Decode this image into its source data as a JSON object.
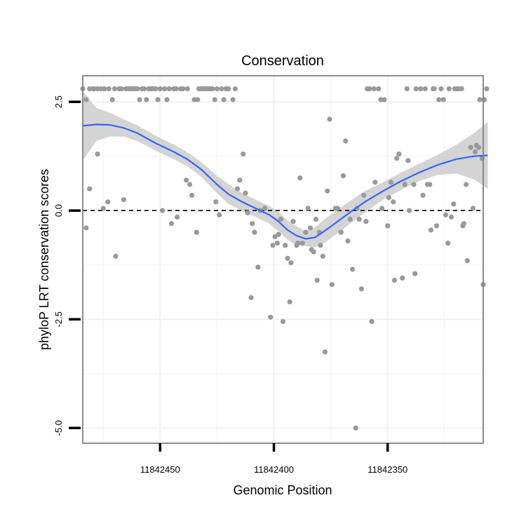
{
  "chart_data": {
    "type": "scatter",
    "title": "Conservation",
    "xlabel": "Genomic Position",
    "ylabel": "phyloP LRT conservation scores",
    "x_reversed": true,
    "xlim": [
      11842484,
      11842308
    ],
    "ylim": [
      -5.35,
      3.1
    ],
    "x_ticks": [
      11842450,
      11842400,
      11842350
    ],
    "x_tick_labels": [
      "11842450",
      "11842400",
      "11842350"
    ],
    "y_ticks": [
      2.5,
      0.0,
      -2.5,
      -5.0
    ],
    "y_tick_labels": [
      "2.5",
      "0.0",
      "-2.5",
      "-5.0"
    ],
    "minor_gridlines_x": [
      11842475,
      11842425,
      11842375,
      11842325
    ],
    "minor_gridlines_y": [
      1.25,
      -1.25,
      -3.75
    ],
    "reference_line": {
      "y": 0,
      "style": "dashed"
    },
    "colors": {
      "points": "#999999",
      "smooth": "#3366ff",
      "band": "#cccccc",
      "frame": "#7f7f7f",
      "grid": "#f2f2f2"
    },
    "points": [
      [
        11842484.0,
        2.8
      ],
      [
        11842482.5,
        -0.4
      ],
      [
        11842482.5,
        2.55
      ],
      [
        11842481.0,
        2.8
      ],
      [
        11842481.0,
        0.5
      ],
      [
        11842479.5,
        2.8
      ],
      [
        11842479.0,
        2.8
      ],
      [
        11842477.5,
        2.8
      ],
      [
        11842477.5,
        1.3
      ],
      [
        11842476.0,
        2.8
      ],
      [
        11842475.0,
        0.05
      ],
      [
        11842474.5,
        2.8
      ],
      [
        11842473.0,
        0.2
      ],
      [
        11842472.5,
        2.8
      ],
      [
        11842471.0,
        2.55
      ],
      [
        11842470.0,
        2.8
      ],
      [
        11842469.5,
        -1.05
      ],
      [
        11842468.0,
        2.8
      ],
      [
        11842467.0,
        2.8
      ],
      [
        11842466.0,
        0.25
      ],
      [
        11842465.0,
        2.8
      ],
      [
        11842464.0,
        2.8
      ],
      [
        11842463.0,
        2.8
      ],
      [
        11842462.0,
        2.8
      ],
      [
        11842461.0,
        2.8
      ],
      [
        11842460.0,
        2.8
      ],
      [
        11842459.0,
        2.55
      ],
      [
        11842458.0,
        2.8
      ],
      [
        11842457.0,
        2.8
      ],
      [
        11842456.0,
        2.55
      ],
      [
        11842455.0,
        2.8
      ],
      [
        11842454.0,
        2.8
      ],
      [
        11842453.0,
        2.8
      ],
      [
        11842452.0,
        2.8
      ],
      [
        11842451.0,
        2.55
      ],
      [
        11842450.0,
        2.8
      ],
      [
        11842449.0,
        0.0
      ],
      [
        11842448.0,
        2.8
      ],
      [
        11842447.0,
        2.55
      ],
      [
        11842446.0,
        2.8
      ],
      [
        11842445.0,
        -0.3
      ],
      [
        11842444.0,
        2.8
      ],
      [
        11842443.0,
        2.8
      ],
      [
        11842442.5,
        -0.15
      ],
      [
        11842441.0,
        2.8
      ],
      [
        11842440.0,
        2.8
      ],
      [
        11842438.5,
        0.7
      ],
      [
        11842438.0,
        2.8
      ],
      [
        11842437.0,
        0.6
      ],
      [
        11842436.0,
        0.35
      ],
      [
        11842435.0,
        2.55
      ],
      [
        11842434.0,
        -0.5
      ],
      [
        11842433.5,
        2.55
      ],
      [
        11842433.0,
        2.8
      ],
      [
        11842432.0,
        2.8
      ],
      [
        11842431.0,
        2.8
      ],
      [
        11842430.0,
        2.8
      ],
      [
        11842429.0,
        2.8
      ],
      [
        11842428.0,
        2.8
      ],
      [
        11842427.0,
        2.8
      ],
      [
        11842426.0,
        2.55
      ],
      [
        11842425.5,
        0.2
      ],
      [
        11842425.0,
        2.8
      ],
      [
        11842424.0,
        -0.1
      ],
      [
        11842423.0,
        2.8
      ],
      [
        11842422.0,
        2.55
      ],
      [
        11842421.0,
        2.8
      ],
      [
        11842420.0,
        2.8
      ],
      [
        11842418.0,
        2.55
      ],
      [
        11842417.0,
        2.8
      ],
      [
        11842416.0,
        0.5
      ],
      [
        11842415.0,
        0.7
      ],
      [
        11842413.5,
        1.3
      ],
      [
        11842412.5,
        0.4
      ],
      [
        11842411.5,
        -0.05
      ],
      [
        11842410.0,
        -2.0
      ],
      [
        11842409.5,
        -0.3
      ],
      [
        11842408.5,
        -0.5
      ],
      [
        11842407.0,
        -1.3
      ],
      [
        11842406.0,
        0.0
      ],
      [
        11842404.0,
        0.05
      ],
      [
        11842401.5,
        -2.45
      ],
      [
        11842400.5,
        -0.8
      ],
      [
        11842399.5,
        -0.6
      ],
      [
        11842398.5,
        -0.75
      ],
      [
        11842398.0,
        -0.55
      ],
      [
        11842397.0,
        -0.2
      ],
      [
        11842396.0,
        -2.55
      ],
      [
        11842395.0,
        -0.8
      ],
      [
        11842394.0,
        -1.1
      ],
      [
        11842393.0,
        -2.1
      ],
      [
        11842392.5,
        -1.2
      ],
      [
        11842391.5,
        -0.25
      ],
      [
        11842390.0,
        -0.8
      ],
      [
        11842389.5,
        -0.75
      ],
      [
        11842388.5,
        0.75
      ],
      [
        11842387.5,
        -0.75
      ],
      [
        11842386.0,
        -0.5
      ],
      [
        11842385.0,
        0.05
      ],
      [
        11842384.0,
        -0.4
      ],
      [
        11842383.5,
        -0.9
      ],
      [
        11842382.5,
        -0.95
      ],
      [
        11842381.5,
        -0.2
      ],
      [
        11842381.0,
        -1.6
      ],
      [
        11842380.0,
        -0.5
      ],
      [
        11842379.5,
        -0.8
      ],
      [
        11842378.5,
        -1.05
      ],
      [
        11842377.5,
        -3.25
      ],
      [
        11842376.5,
        0.45
      ],
      [
        11842375.5,
        2.1
      ],
      [
        11842374.5,
        -1.7
      ],
      [
        11842373.0,
        0.05
      ],
      [
        11842372.0,
        0.05
      ],
      [
        11842370.5,
        -0.5
      ],
      [
        11842369.5,
        0.8
      ],
      [
        11842368.5,
        1.6
      ],
      [
        11842367.5,
        -0.7
      ],
      [
        11842366.5,
        -0.2
      ],
      [
        11842365.5,
        -1.35
      ],
      [
        11842364.0,
        -5.0
      ],
      [
        11842363.5,
        0.05
      ],
      [
        11842362.5,
        -0.2
      ],
      [
        11842361.5,
        -1.8
      ],
      [
        11842360.5,
        0.35
      ],
      [
        11842359.5,
        -0.25
      ],
      [
        11842359.0,
        2.8
      ],
      [
        11842358.0,
        2.8
      ],
      [
        11842357.0,
        -2.55
      ],
      [
        11842356.0,
        2.8
      ],
      [
        11842355.5,
        0.65
      ],
      [
        11842354.0,
        2.8
      ],
      [
        11842353.0,
        2.55
      ],
      [
        11842352.5,
        0.05
      ],
      [
        11842351.5,
        2.55
      ],
      [
        11842350.0,
        -0.35
      ],
      [
        11842349.5,
        0.3
      ],
      [
        11842348.5,
        0.65
      ],
      [
        11842347.5,
        0.2
      ],
      [
        11842347.0,
        -1.6
      ],
      [
        11842346.0,
        1.2
      ],
      [
        11842345.0,
        1.3
      ],
      [
        11842343.5,
        -1.55
      ],
      [
        11842342.5,
        0.6
      ],
      [
        11842341.5,
        2.8
      ],
      [
        11842341.0,
        1.15
      ],
      [
        11842340.5,
        0.0
      ],
      [
        11842338.5,
        0.6
      ],
      [
        11842338.0,
        -1.45
      ],
      [
        11842337.5,
        2.8
      ],
      [
        11842335.5,
        2.8
      ],
      [
        11842334.5,
        0.35
      ],
      [
        11842333.5,
        2.8
      ],
      [
        11842332.5,
        0.6
      ],
      [
        11842331.5,
        0.6
      ],
      [
        11842331.0,
        -0.45
      ],
      [
        11842330.0,
        2.8
      ],
      [
        11842329.5,
        2.8
      ],
      [
        11842328.5,
        -0.35
      ],
      [
        11842327.5,
        2.55
      ],
      [
        11842326.5,
        2.8
      ],
      [
        11842325.5,
        2.55
      ],
      [
        11842324.5,
        -0.1
      ],
      [
        11842323.5,
        -0.75
      ],
      [
        11842323.0,
        2.8
      ],
      [
        11842322.0,
        -0.15
      ],
      [
        11842321.0,
        0.15
      ],
      [
        11842320.5,
        2.8
      ],
      [
        11842319.5,
        2.8
      ],
      [
        11842318.5,
        2.8
      ],
      [
        11842317.5,
        2.8
      ],
      [
        11842317.0,
        -0.35
      ],
      [
        11842316.5,
        -0.3
      ],
      [
        11842315.5,
        0.6
      ],
      [
        11842315.0,
        -1.15
      ],
      [
        11842313.5,
        1.45
      ],
      [
        11842312.5,
        0.05
      ],
      [
        11842311.5,
        1.35
      ],
      [
        11842311.0,
        1.5
      ],
      [
        11842310.0,
        1.45
      ],
      [
        11842309.5,
        2.55
      ],
      [
        11842308.5,
        1.2
      ],
      [
        11842308.0,
        -1.7
      ],
      [
        11842307.5,
        2.55
      ],
      [
        11842306.5,
        2.8
      ]
    ],
    "smooth_line": [
      [
        11842484,
        1.95
      ],
      [
        11842478,
        1.98
      ],
      [
        11842472,
        1.97
      ],
      [
        11842466,
        1.9
      ],
      [
        11842460,
        1.78
      ],
      [
        11842452,
        1.55
      ],
      [
        11842444,
        1.35
      ],
      [
        11842438,
        1.18
      ],
      [
        11842432,
        0.95
      ],
      [
        11842425,
        0.6
      ],
      [
        11842420,
        0.38
      ],
      [
        11842414,
        0.2
      ],
      [
        11842408,
        0.05
      ],
      [
        11842402,
        -0.1
      ],
      [
        11842398,
        -0.25
      ],
      [
        11842394,
        -0.45
      ],
      [
        11842390,
        -0.58
      ],
      [
        11842386,
        -0.65
      ],
      [
        11842382,
        -0.62
      ],
      [
        11842378,
        -0.48
      ],
      [
        11842372,
        -0.25
      ],
      [
        11842366,
        -0.02
      ],
      [
        11842360,
        0.2
      ],
      [
        11842352,
        0.45
      ],
      [
        11842344,
        0.68
      ],
      [
        11842336,
        0.88
      ],
      [
        11842328,
        1.05
      ],
      [
        11842320,
        1.18
      ],
      [
        11842312,
        1.25
      ],
      [
        11842306,
        1.27
      ]
    ],
    "confidence_band": {
      "x": [
        11842484,
        11842478,
        11842472,
        11842466,
        11842460,
        11842452,
        11842444,
        11842438,
        11842432,
        11842425,
        11842420,
        11842414,
        11842408,
        11842402,
        11842398,
        11842394,
        11842390,
        11842386,
        11842382,
        11842378,
        11842372,
        11842366,
        11842360,
        11842352,
        11842344,
        11842336,
        11842328,
        11842320,
        11842312,
        11842306
      ],
      "lower": [
        1.15,
        1.6,
        1.7,
        1.7,
        1.6,
        1.38,
        1.18,
        1.02,
        0.78,
        0.4,
        0.15,
        0.0,
        -0.15,
        -0.3,
        -0.48,
        -0.67,
        -0.8,
        -0.82,
        -0.85,
        -0.75,
        -0.52,
        -0.28,
        -0.05,
        0.25,
        0.48,
        0.68,
        0.82,
        0.85,
        0.72,
        0.5
      ],
      "upper": [
        2.75,
        2.36,
        2.24,
        2.1,
        1.96,
        1.72,
        1.52,
        1.34,
        1.12,
        0.8,
        0.61,
        0.4,
        0.25,
        0.1,
        -0.02,
        -0.23,
        -0.36,
        -0.48,
        -0.39,
        -0.21,
        0.02,
        0.24,
        0.45,
        0.65,
        0.88,
        1.08,
        1.28,
        1.51,
        1.78,
        2.04
      ]
    }
  }
}
